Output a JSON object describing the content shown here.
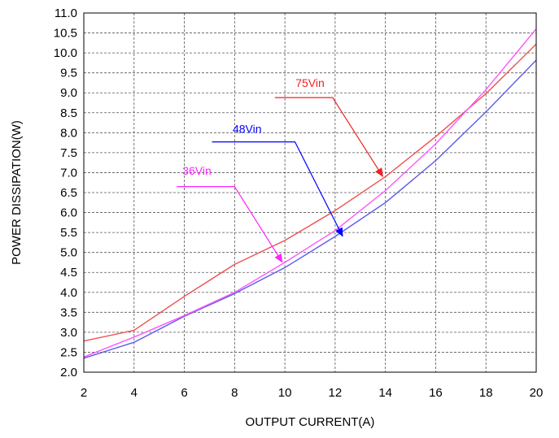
{
  "chart_data": {
    "type": "line",
    "title": "",
    "xlabel": "OUTPUT CURRENT(A)",
    "ylabel": "POWER DISSIPATION(W)",
    "xlim": [
      2,
      20
    ],
    "ylim": [
      2.0,
      11.0
    ],
    "x_ticks": [
      2,
      4,
      6,
      8,
      10,
      12,
      14,
      16,
      18,
      20
    ],
    "x_tick_labels": [
      "2",
      "4",
      "6",
      "8",
      "10",
      "12",
      "14",
      "16",
      "18",
      "20"
    ],
    "y_ticks": [
      2.0,
      2.5,
      3.0,
      3.5,
      4.0,
      4.5,
      5.0,
      5.5,
      6.0,
      6.5,
      7.0,
      7.5,
      8.0,
      8.5,
      9.0,
      9.5,
      10.0,
      10.5,
      11.0
    ],
    "y_tick_labels": [
      "2.0",
      "2.5",
      "3.0",
      "3.5",
      "4.0",
      "4.5",
      "5.0",
      "5.5",
      "6.0",
      "6.5",
      "7.0",
      "7.5",
      "8.0",
      "8.5",
      "9.0",
      "9.5",
      "10.0",
      "10.5",
      "11.0"
    ],
    "grid": true,
    "grid_style": "dashed",
    "series": [
      {
        "color": "#f05050",
        "x": [
          2,
          4,
          6,
          8,
          10,
          12,
          14,
          16,
          18,
          20
        ],
        "y": [
          2.78,
          3.05,
          3.9,
          4.7,
          5.3,
          6.05,
          6.9,
          7.9,
          8.98,
          10.22
        ]
      },
      {
        "color": "#5a5aee",
        "x": [
          2,
          4,
          6,
          8,
          10,
          12,
          14,
          16,
          18,
          20
        ],
        "y": [
          2.35,
          2.75,
          3.4,
          3.97,
          4.62,
          5.4,
          6.25,
          7.3,
          8.52,
          9.82
        ]
      },
      {
        "color": "#ff55ff",
        "x": [
          2,
          4,
          6,
          8,
          10,
          12,
          14,
          16,
          18,
          20
        ],
        "y": [
          2.38,
          2.88,
          3.42,
          4.0,
          4.75,
          5.55,
          6.55,
          7.72,
          9.08,
          10.6
        ]
      }
    ],
    "annotations": [
      {
        "text": "75Vin",
        "color": "#ee2222",
        "label_at": [
          11,
          9.15
        ],
        "path": [
          [
            9.6,
            8.88
          ],
          [
            11.9,
            8.88
          ],
          [
            13.9,
            6.9
          ]
        ]
      },
      {
        "text": "48Vin",
        "color": "#0000ff",
        "label_at": [
          8.5,
          8.0
        ],
        "path": [
          [
            7.1,
            7.77
          ],
          [
            10.4,
            7.77
          ],
          [
            12.3,
            5.4
          ]
        ]
      },
      {
        "text": "36Vin",
        "color": "#ff22ff",
        "label_at": [
          6.5,
          6.95
        ],
        "path": [
          [
            5.7,
            6.65
          ],
          [
            8.0,
            6.65
          ],
          [
            9.9,
            4.75
          ]
        ]
      }
    ]
  }
}
